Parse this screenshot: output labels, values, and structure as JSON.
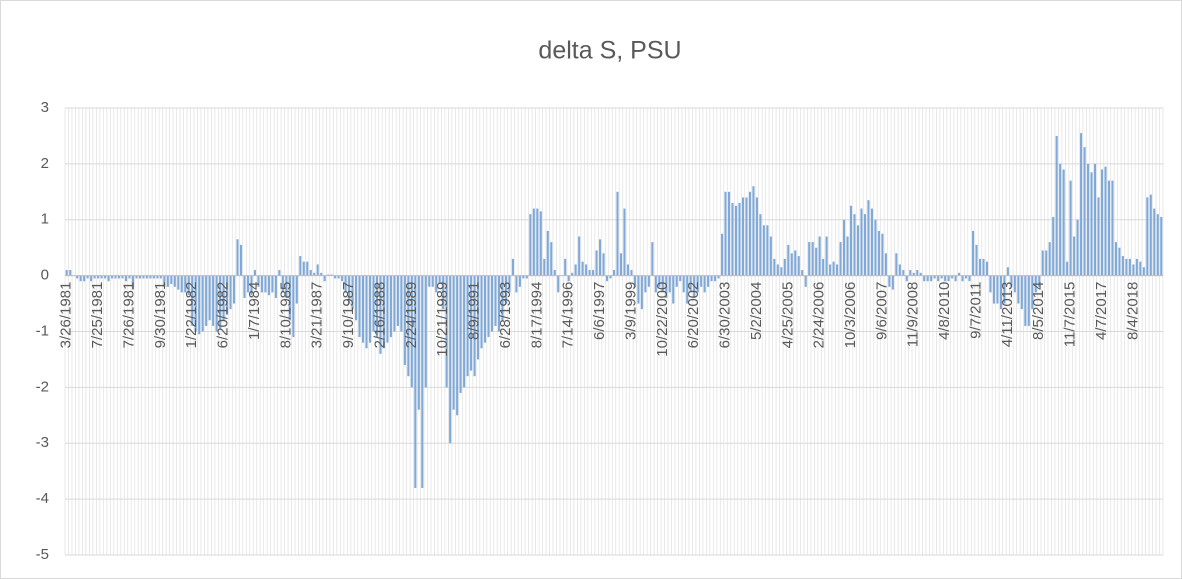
{
  "chart_data": {
    "type": "bar",
    "title": "delta S, PSU",
    "categories": [
      "3/26/1981",
      null,
      null,
      null,
      null,
      null,
      null,
      null,
      null,
      "7/25/1981",
      null,
      null,
      null,
      null,
      null,
      null,
      null,
      null,
      "7/26/1981",
      null,
      null,
      null,
      null,
      null,
      null,
      null,
      null,
      "9/30/1981",
      null,
      null,
      null,
      null,
      null,
      null,
      null,
      null,
      "1/22/1982",
      null,
      null,
      null,
      null,
      null,
      null,
      null,
      null,
      "6/20/1982",
      null,
      null,
      null,
      null,
      null,
      null,
      null,
      null,
      "1/7/1984",
      null,
      null,
      null,
      null,
      null,
      null,
      null,
      null,
      "8/10/1985",
      null,
      null,
      null,
      null,
      null,
      null,
      null,
      null,
      "3/21/1987",
      null,
      null,
      null,
      null,
      null,
      null,
      null,
      null,
      "9/10/1987",
      null,
      null,
      null,
      null,
      null,
      null,
      null,
      null,
      "2/16/1988",
      null,
      null,
      null,
      null,
      null,
      null,
      null,
      null,
      "2/24/1989",
      null,
      null,
      null,
      null,
      null,
      null,
      null,
      null,
      "10/21/1989",
      null,
      null,
      null,
      null,
      null,
      null,
      null,
      null,
      "8/9/1991",
      null,
      null,
      null,
      null,
      null,
      null,
      null,
      null,
      "6/28/1993",
      null,
      null,
      null,
      null,
      null,
      null,
      null,
      null,
      "8/17/1994",
      null,
      null,
      null,
      null,
      null,
      null,
      null,
      null,
      "7/14/1996",
      null,
      null,
      null,
      null,
      null,
      null,
      null,
      null,
      "6/6/1997",
      null,
      null,
      null,
      null,
      null,
      null,
      null,
      null,
      "3/9/1999",
      null,
      null,
      null,
      null,
      null,
      null,
      null,
      null,
      "10/22/2000",
      null,
      null,
      null,
      null,
      null,
      null,
      null,
      null,
      "6/20/2002",
      null,
      null,
      null,
      null,
      null,
      null,
      null,
      null,
      "6/30/2003",
      null,
      null,
      null,
      null,
      null,
      null,
      null,
      null,
      "5/2/2004",
      null,
      null,
      null,
      null,
      null,
      null,
      null,
      null,
      "4/25/2005",
      null,
      null,
      null,
      null,
      null,
      null,
      null,
      null,
      "2/24/2006",
      null,
      null,
      null,
      null,
      null,
      null,
      null,
      null,
      "10/3/2006",
      null,
      null,
      null,
      null,
      null,
      null,
      null,
      null,
      "9/6/2007",
      null,
      null,
      null,
      null,
      null,
      null,
      null,
      null,
      "11/9/2008",
      null,
      null,
      null,
      null,
      null,
      null,
      null,
      null,
      "4/8/2010",
      null,
      null,
      null,
      null,
      null,
      null,
      null,
      null,
      "9/7/2011",
      null,
      null,
      null,
      null,
      null,
      null,
      null,
      null,
      "4/11/2013",
      null,
      null,
      null,
      null,
      null,
      null,
      null,
      null,
      "8/5/2014",
      null,
      null,
      null,
      null,
      null,
      null,
      null,
      null,
      "11/7/2015",
      null,
      null,
      null,
      null,
      null,
      null,
      null,
      null,
      "4/7/2017",
      null,
      null,
      null,
      null,
      null,
      null,
      null,
      null,
      "8/4/2018",
      null,
      null,
      null,
      null,
      null,
      null,
      null,
      null
    ],
    "values": [
      0.1,
      0.1,
      0,
      -0.05,
      -0.1,
      -0.1,
      -0.05,
      -0.1,
      -0.05,
      -0.05,
      -0.05,
      -0.05,
      -0.1,
      -0.05,
      -0.05,
      -0.05,
      -0.05,
      -0.1,
      -0.05,
      -0.25,
      -0.05,
      -0.05,
      -0.05,
      -0.05,
      -0.05,
      -0.05,
      -0.05,
      -0.05,
      -0.2,
      -0.2,
      -0.15,
      -0.2,
      -0.25,
      -0.3,
      -0.3,
      -0.35,
      -0.9,
      -1,
      -1.05,
      -1,
      -0.9,
      -0.8,
      -0.9,
      -1,
      -0.95,
      -0.8,
      -0.7,
      -0.6,
      -0.5,
      0.65,
      0.55,
      -0.4,
      -0.3,
      -0.35,
      0.1,
      -0.2,
      -0.3,
      -0.3,
      -0.35,
      -0.3,
      -0.4,
      0.1,
      -0.3,
      -0.4,
      -0.8,
      -1.1,
      -0.5,
      0.35,
      0.25,
      0.25,
      0.1,
      0.05,
      0.2,
      0.05,
      -0.1,
      0.02,
      0.02,
      -0.05,
      -0.05,
      -0.1,
      -0.3,
      -0.5,
      -0.6,
      -0.8,
      -1.1,
      -1.2,
      -1.3,
      -1.2,
      -1.0,
      -1.1,
      -1.4,
      -1.3,
      -1.2,
      -1.1,
      -1.0,
      -0.9,
      -1.0,
      -1.6,
      -1.8,
      -2.0,
      -3.8,
      -2.4,
      -3.8,
      -2.0,
      -0.2,
      -0.2,
      -0.3,
      -0.15,
      -0.6,
      -2.0,
      -3.0,
      -2.4,
      -2.5,
      -2.1,
      -2.0,
      -1.8,
      -1.7,
      -1.8,
      -1.5,
      -1.3,
      -1.2,
      -1.1,
      -1.0,
      -0.9,
      -1.0,
      -0.8,
      -0.5,
      -0.3,
      0.3,
      -0.3,
      -0.2,
      -0.05,
      -0.05,
      1.1,
      1.2,
      1.2,
      1.15,
      0.3,
      0.8,
      0.6,
      0.1,
      -0.3,
      0.0,
      0.3,
      -0.1,
      0.05,
      0.2,
      0.7,
      0.25,
      0.2,
      0.1,
      0.1,
      0.45,
      0.65,
      0.4,
      -0.1,
      -0.05,
      0.1,
      1.5,
      0.4,
      1.2,
      0.2,
      0.1,
      -0.2,
      -0.5,
      -0.6,
      -0.3,
      -0.2,
      0.6,
      -0.3,
      -0.2,
      -0.3,
      -0.4,
      -0.3,
      -0.5,
      -0.2,
      -0.1,
      -0.3,
      -0.5,
      -0.3,
      -0.4,
      -0.3,
      -0.2,
      -0.3,
      -0.2,
      -0.1,
      -0.1,
      -0.05,
      0.75,
      1.5,
      1.5,
      1.3,
      1.25,
      1.3,
      1.4,
      1.4,
      1.5,
      1.6,
      1.4,
      1.1,
      0.9,
      0.9,
      0.7,
      0.3,
      0.2,
      0.15,
      0.3,
      0.55,
      0.4,
      0.45,
      0.35,
      0.1,
      -0.2,
      0.6,
      0.6,
      0.5,
      0.7,
      0.3,
      0.7,
      0.2,
      0.25,
      0.2,
      0.6,
      1.0,
      0.7,
      1.25,
      1.1,
      0.9,
      1.2,
      1.1,
      1.35,
      1.2,
      1.0,
      0.8,
      0.75,
      0.4,
      -0.2,
      -0.25,
      0.4,
      0.2,
      0.1,
      -0.1,
      0.1,
      0.05,
      0.1,
      0.05,
      -0.1,
      -0.1,
      -0.1,
      -0.05,
      -0.1,
      -0.05,
      -0.1,
      -0.1,
      -0.05,
      -0.1,
      0.05,
      -0.1,
      -0.05,
      -0.1,
      0.8,
      0.55,
      0.3,
      0.3,
      0.25,
      -0.3,
      -0.5,
      -0.5,
      -0.6,
      -0.5,
      0.15,
      -0.2,
      -0.3,
      -0.5,
      -0.6,
      -0.9,
      -0.9,
      -0.6,
      -0.3,
      -0.2,
      0.45,
      0.45,
      0.6,
      1.05,
      2.5,
      2.0,
      1.9,
      0.25,
      1.7,
      0.7,
      1.0,
      2.55,
      2.3,
      2.0,
      1.85,
      2.0,
      1.4,
      1.9,
      1.95,
      1.7,
      1.7,
      0.6,
      0.5,
      0.35,
      0.3,
      0.3,
      0.2,
      0.3,
      0.25,
      0.15,
      1.4,
      1.45,
      1.2,
      1.1,
      1.05
    ],
    "color": "#7fa9d9",
    "ylim": [
      -5,
      3
    ],
    "yticks": [
      -5,
      -4,
      -3,
      -2,
      -1,
      0,
      1,
      2,
      3
    ],
    "grid": true,
    "xgrid": true
  }
}
